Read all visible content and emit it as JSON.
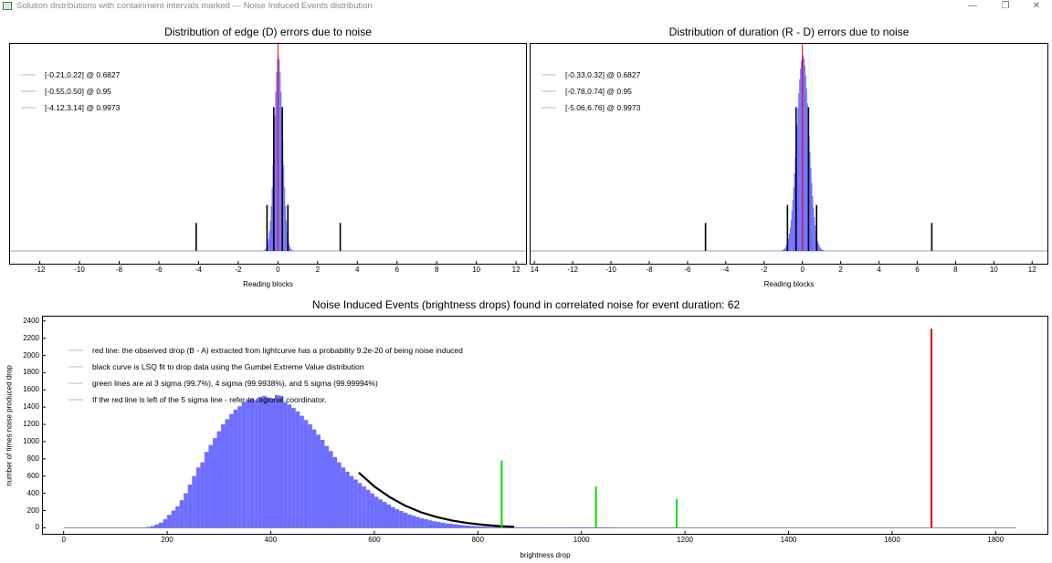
{
  "window": {
    "title": "Solution distributions with containment intervals marked --- Noise Induced Events distribution",
    "icon": "app-icon",
    "minimize_symbol": "—",
    "restore_symbol": "❐",
    "close_symbol": "✕"
  },
  "chart_data": [
    {
      "type": "bar",
      "title": "Distribution of edge (D) errors due to noise",
      "xlabel": "Reading blocks",
      "ylabel": "",
      "xlim": [
        -13.5,
        12.5
      ],
      "xticks": [
        -12,
        -10,
        -8,
        -6,
        -4,
        -2,
        0,
        2,
        4,
        6,
        8,
        10,
        12
      ],
      "distribution": {
        "center": 0.0,
        "sigma": 0.21
      },
      "observed_line": {
        "x": 0.0,
        "color": "#ff0000"
      },
      "interval_lines": [
        {
          "x": -0.21,
          "h": 0.72
        },
        {
          "x": 0.22,
          "h": 0.72
        },
        {
          "x": -0.55,
          "h": 0.23
        },
        {
          "x": 0.5,
          "h": 0.23
        },
        {
          "x": -4.12,
          "h": 0.14
        },
        {
          "x": 3.14,
          "h": 0.14
        }
      ],
      "legend": [
        "[-0.21,0.22] @ 0.6827",
        "[-0.55,0.50] @ 0.95",
        "[-4.12,3.14] @ 0.9973"
      ],
      "legend_position": "top-left",
      "colors": {
        "bars": "#5555ff",
        "observed": "#ff0000",
        "intervals": "#000000"
      }
    },
    {
      "type": "bar",
      "title": "Distribution of duration (R - D) errors due to noise",
      "xlabel": "Reading blocks",
      "ylabel": "",
      "xlim": [
        -14.2,
        12.8
      ],
      "xticks": [
        14,
        -12,
        -10,
        -8,
        -6,
        -4,
        -2,
        0,
        2,
        4,
        6,
        8,
        10,
        12
      ],
      "distribution": {
        "center": 0.0,
        "sigma": 0.32
      },
      "observed_line": {
        "x": 0.0,
        "color": "#ff0000"
      },
      "interval_lines": [
        {
          "x": -0.33,
          "h": 0.72
        },
        {
          "x": 0.32,
          "h": 0.72
        },
        {
          "x": -0.78,
          "h": 0.23
        },
        {
          "x": 0.74,
          "h": 0.23
        },
        {
          "x": -5.06,
          "h": 0.14
        },
        {
          "x": 6.76,
          "h": 0.14
        }
      ],
      "legend": [
        "[-0.33,0.32] @ 0.6827",
        "[-0.78,0.74] @ 0.95",
        "[-5.06,6.76] @ 0.9973"
      ],
      "legend_position": "top-left",
      "colors": {
        "bars": "#5555ff",
        "observed": "#ff0000",
        "intervals": "#000000"
      }
    },
    {
      "type": "bar",
      "title": "Noise Induced Events (brightness drops) found in correlated noise for event duration: 62",
      "xlabel": "brightness drop",
      "ylabel": "number of times noise produced drop",
      "xlim": [
        -40,
        1900
      ],
      "ylim": [
        -70,
        2450
      ],
      "xticks": [
        0,
        200,
        400,
        600,
        800,
        1000,
        1200,
        1400,
        1600,
        1800
      ],
      "yticks": [
        0,
        200,
        400,
        600,
        800,
        1000,
        1200,
        1400,
        1600,
        1800,
        2000,
        2200,
        2400
      ],
      "histogram": {
        "bin_width": 8,
        "x": [
          160,
          168,
          176,
          184,
          192,
          200,
          208,
          216,
          224,
          232,
          240,
          248,
          256,
          264,
          272,
          280,
          288,
          296,
          304,
          312,
          320,
          328,
          336,
          344,
          352,
          360,
          368,
          376,
          384,
          392,
          400,
          408,
          416,
          424,
          432,
          440,
          448,
          456,
          464,
          472,
          480,
          488,
          496,
          504,
          512,
          520,
          528,
          536,
          544,
          552,
          560,
          568,
          576,
          584,
          592,
          600,
          608,
          616,
          624,
          632,
          640,
          648,
          656,
          664,
          672,
          680,
          688,
          696,
          704,
          712,
          720,
          728,
          736,
          744,
          752,
          760,
          768,
          776,
          784,
          792,
          800,
          808,
          816,
          824,
          832,
          840,
          848,
          856,
          864,
          872,
          880,
          888,
          896,
          904,
          912,
          920,
          928,
          936,
          944,
          952,
          960,
          968,
          976,
          984,
          992,
          1000,
          1008,
          1016,
          1024,
          1032,
          1040,
          1048,
          1056
        ],
        "values": [
          10,
          20,
          40,
          60,
          100,
          150,
          200,
          250,
          320,
          400,
          500,
          600,
          700,
          760,
          880,
          960,
          1040,
          1120,
          1200,
          1260,
          1320,
          1370,
          1410,
          1460,
          1490,
          1500,
          1480,
          1520,
          1530,
          1510,
          1500,
          1540,
          1530,
          1460,
          1430,
          1390,
          1350,
          1300,
          1250,
          1200,
          1140,
          1080,
          1020,
          950,
          890,
          820,
          760,
          700,
          650,
          600,
          560,
          520,
          480,
          440,
          400,
          360,
          330,
          300,
          270,
          240,
          215,
          195,
          175,
          155,
          140,
          125,
          110,
          98,
          86,
          76,
          67,
          59,
          52,
          46,
          40,
          35,
          30,
          26,
          23,
          20,
          17,
          15,
          13,
          11,
          10,
          9,
          8,
          7,
          6,
          5,
          5,
          4,
          4,
          3,
          3,
          3,
          2,
          2,
          2,
          2,
          2,
          2,
          1,
          1,
          1,
          1,
          1,
          1,
          1,
          1,
          1,
          1,
          1
        ]
      },
      "fit_curve": {
        "x": [
          570,
          600,
          630,
          660,
          690,
          720,
          750,
          780,
          810,
          840,
          870
        ],
        "y": [
          640,
          480,
          355,
          255,
          180,
          125,
          85,
          55,
          35,
          20,
          10
        ]
      },
      "vertical_lines": [
        {
          "x": 1676,
          "y": 2310,
          "color": "#d40000",
          "label": "observed drop"
        },
        {
          "x": 846,
          "y": 780,
          "color": "#00dd00",
          "label": "3 sigma"
        },
        {
          "x": 1028,
          "y": 480,
          "color": "#00dd00",
          "label": "4 sigma"
        },
        {
          "x": 1184,
          "y": 330,
          "color": "#00dd00",
          "label": "5 sigma"
        }
      ],
      "legend": [
        "red line: the observed drop (B - A) extracted from lightcurve has a probability 9.2e-20 of being noise induced",
        "black curve is LSQ fit to drop data using the Gumbel Extreme Value distribution",
        "green lines are at 3 sigma (99.7%), 4 sigma (99.9938%), and 5 sigma (99.99994%)",
        "If the red line is left of the 5 sigma line - refer to regional coordinator."
      ],
      "legend_position": "top-left",
      "colors": {
        "bars": "#5555ff",
        "fit": "#000000",
        "observed": "#d40000",
        "sigma": "#00dd00"
      }
    }
  ]
}
